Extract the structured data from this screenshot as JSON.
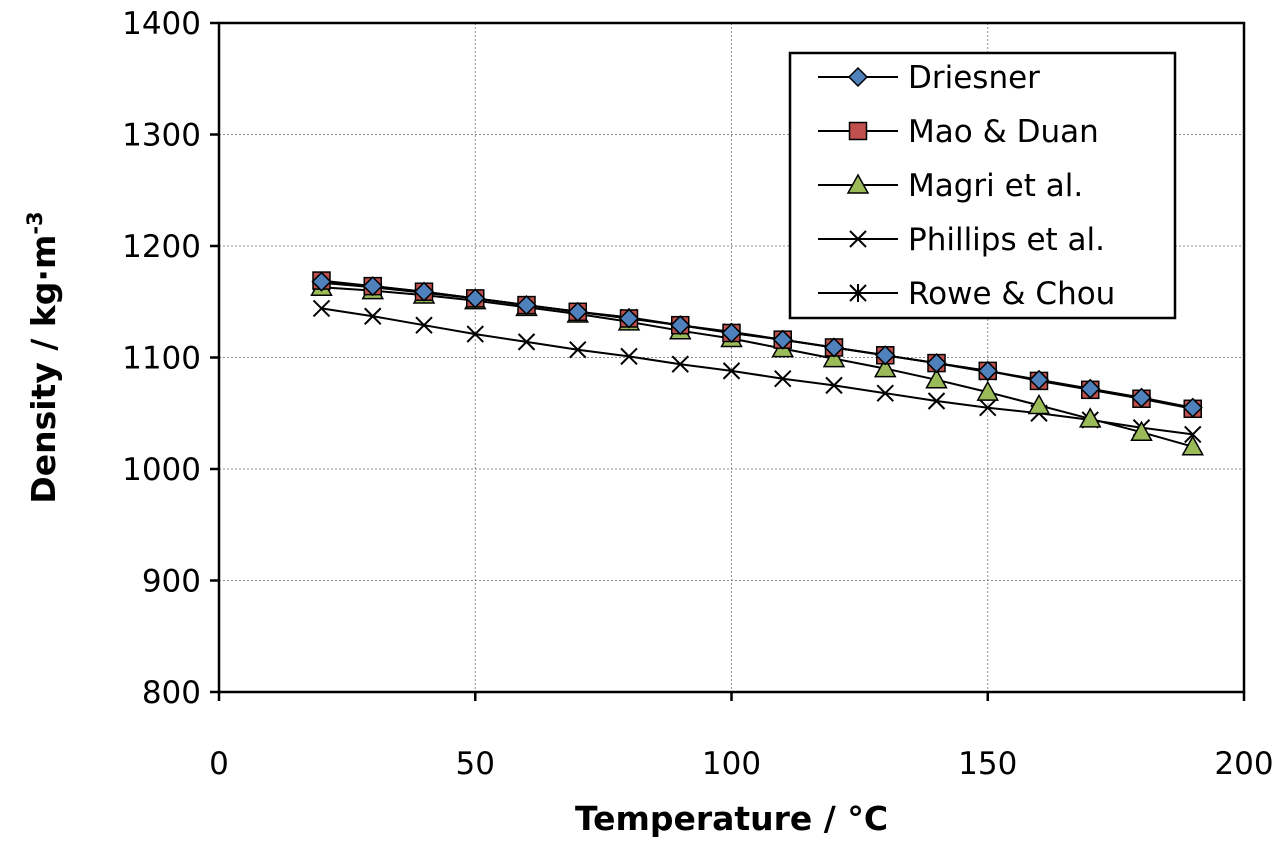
{
  "chart_data": {
    "type": "line",
    "title": "",
    "xlabel": "Temperature / °C",
    "ylabel": "Density / kg·m",
    "ylabel_superscript": "-3",
    "xlim": [
      0,
      200
    ],
    "ylim": [
      800,
      1400
    ],
    "x_ticks": [
      "0",
      "50",
      "100",
      "150",
      "200"
    ],
    "y_ticks": [
      "800",
      "900",
      "1000",
      "1100",
      "1200",
      "1300",
      "1400"
    ],
    "grid": true,
    "legend_position": "top-right",
    "series": [
      {
        "name": "Driesner",
        "marker": "diamond",
        "color": "#4F81BD",
        "x": [
          20,
          30,
          40,
          50,
          60,
          70,
          80,
          90,
          100,
          110,
          120,
          130,
          140,
          150,
          160,
          170,
          180,
          190
        ],
        "y": [
          1168,
          1164,
          1159,
          1153,
          1147,
          1141,
          1135,
          1129,
          1122,
          1116,
          1109,
          1102,
          1095,
          1088,
          1080,
          1072,
          1064,
          1055
        ]
      },
      {
        "name": "Mao & Duan",
        "marker": "square",
        "color": "#C0504D",
        "x": [
          20,
          30,
          40,
          50,
          60,
          70,
          80,
          90,
          100,
          110,
          120,
          130,
          140,
          150,
          160,
          170,
          180,
          190
        ],
        "y": [
          1169,
          1164,
          1159,
          1153,
          1147,
          1141,
          1135,
          1129,
          1122,
          1116,
          1109,
          1102,
          1095,
          1088,
          1079,
          1071,
          1063,
          1054
        ]
      },
      {
        "name": "Magri et al.",
        "marker": "triangle",
        "color": "#9BBB59",
        "x": [
          20,
          30,
          40,
          50,
          60,
          70,
          80,
          90,
          100,
          110,
          120,
          130,
          140,
          150,
          160,
          170,
          180,
          190
        ],
        "y": [
          1163,
          1160,
          1156,
          1151,
          1145,
          1139,
          1132,
          1124,
          1117,
          1108,
          1099,
          1090,
          1080,
          1069,
          1057,
          1045,
          1033,
          1020
        ]
      },
      {
        "name": "Phillips et al.",
        "marker": "x",
        "color": "#000000",
        "x": [
          20,
          30,
          40,
          50,
          60,
          70,
          80,
          90,
          100,
          110,
          120,
          130,
          140,
          150,
          160,
          170,
          180,
          190
        ],
        "y": [
          1144,
          1137,
          1129,
          1121,
          1114,
          1107,
          1101,
          1094,
          1088,
          1081,
          1075,
          1068,
          1061,
          1055,
          1050,
          1044,
          1037,
          1031
        ]
      },
      {
        "name": "Rowe & Chou",
        "marker": "star",
        "color": "#000000",
        "x": [
          20,
          30,
          40,
          50,
          60,
          70,
          80,
          90,
          100,
          110,
          120,
          130,
          140,
          150
        ],
        "y": [
          1167,
          1163,
          1158,
          1153,
          1147,
          1141,
          1136,
          1129,
          1123,
          1116,
          1109,
          1102,
          1095,
          1087
        ]
      }
    ]
  }
}
